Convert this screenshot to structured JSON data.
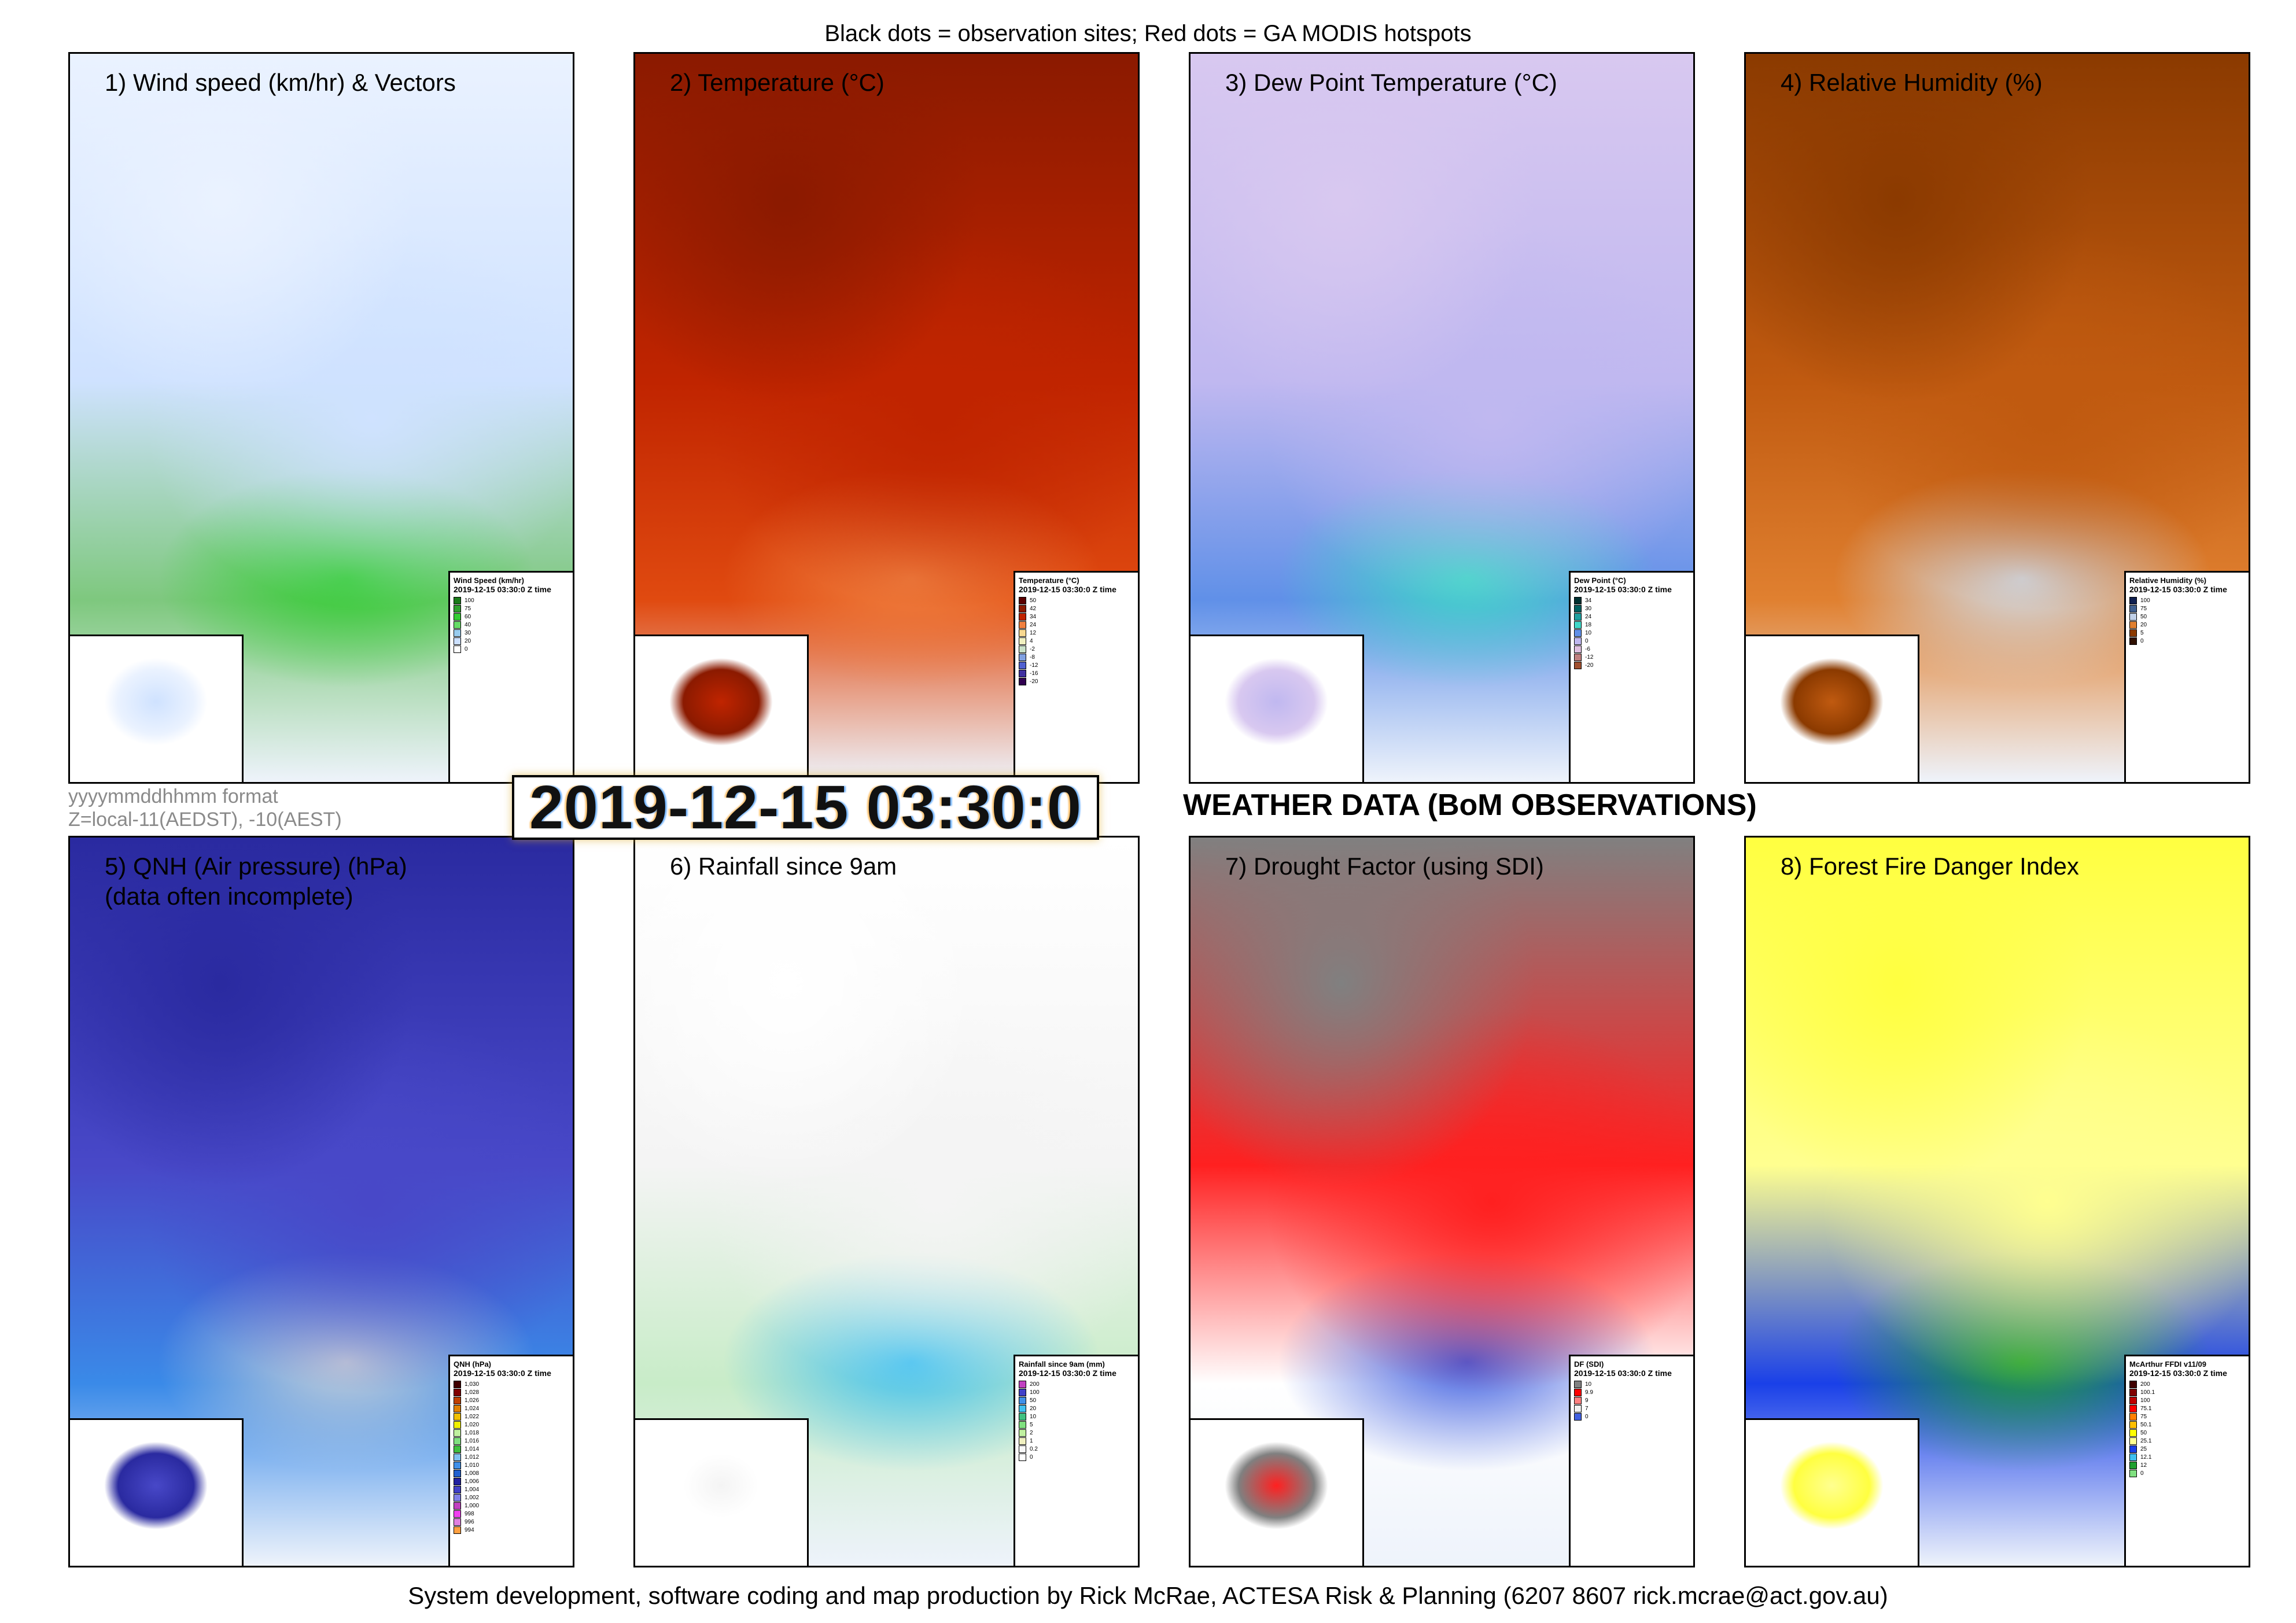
{
  "header": {
    "text": "Black dots = observation sites; Red dots = GA MODIS hotspots"
  },
  "footer": {
    "text": "System development, software coding and map production by Rick McRae, ACTESA Risk & Planning (6207 8607 rick.mcrae@act.gov.au)"
  },
  "date_stamp": "2019-12-15 03:30:0",
  "format_note": {
    "line1": "yyyymmddhhmm format",
    "line2": "Z=local-11(AEDST), -10(AEST)"
  },
  "section_title": "WEATHER DATA (BoM OBSERVATIONS)",
  "time_label": "2019-12-15 03:30:0 Z time",
  "panels": [
    {
      "title": "1) Wind speed (km/hr) & Vectors",
      "subtitle": "",
      "colors": [
        "#eaf2ff",
        "#cfe2ff",
        "#7ec87e",
        "#33cc33"
      ],
      "legend": {
        "title": "Wind Speed (km/hr)",
        "labels": [
          "100",
          "75",
          "60",
          "40",
          "30",
          "20",
          "0"
        ],
        "colors": [
          "#1a7a1a",
          "#2fa02f",
          "#33cc33",
          "#66dd66",
          "#99ccee",
          "#cce0ff",
          "#ffffff"
        ]
      }
    },
    {
      "title": "2) Temperature (°C)",
      "subtitle": "",
      "colors": [
        "#8b1a00",
        "#c02400",
        "#e04a10",
        "#f08040"
      ],
      "legend": {
        "title": "Temperature (°C)",
        "labels": [
          "50",
          "42",
          "34",
          "24",
          "12",
          "4",
          "-2",
          "-8",
          "-12",
          "-16",
          "-20"
        ],
        "colors": [
          "#5a0000",
          "#8b1a00",
          "#c02400",
          "#f08040",
          "#f8d890",
          "#f0f0c0",
          "#c8e0c8",
          "#80a0e0",
          "#5060d0",
          "#4030a0",
          "#300050"
        ]
      }
    },
    {
      "title": "3) Dew Point Temperature (°C)",
      "subtitle": "",
      "colors": [
        "#d8c8f0",
        "#c0b8f0",
        "#6090e8",
        "#40d8c8"
      ],
      "legend": {
        "title": "Dew Point (°C)",
        "labels": [
          "34",
          "30",
          "24",
          "18",
          "10",
          "0",
          "-6",
          "-12",
          "-20"
        ],
        "colors": [
          "#003030",
          "#006060",
          "#20a0a0",
          "#40d8c8",
          "#6090e8",
          "#c0b8f0",
          "#e0c0e0",
          "#c08080",
          "#a05030"
        ]
      }
    },
    {
      "title": "4) Relative Humidity (%)",
      "subtitle": "",
      "colors": [
        "#8b3a00",
        "#c05a10",
        "#e08030",
        "#d0e0f0"
      ],
      "legend": {
        "title": "Relative Humidity (%)",
        "labels": [
          "100",
          "75",
          "50",
          "20",
          "5",
          "0"
        ],
        "colors": [
          "#102050",
          "#406090",
          "#c0d0e8",
          "#e08030",
          "#8b3a00",
          "#301000"
        ]
      }
    },
    {
      "title": "5) QNH (Air pressure) (hPa)",
      "subtitle": "(data often incomplete)",
      "colors": [
        "#2a2aa0",
        "#4848c8",
        "#3a8ae8",
        "#c8d0d8"
      ],
      "legend": {
        "title": "QNH (hPa)",
        "labels": [
          "1,030",
          "1,028",
          "1,026",
          "1,024",
          "1,022",
          "1,020",
          "1,018",
          "1,016",
          "1,014",
          "1,012",
          "1,010",
          "1,008",
          "1,006",
          "1,004",
          "1,002",
          "1,000",
          "998",
          "996",
          "994"
        ],
        "colors": [
          "#400000",
          "#800000",
          "#c04000",
          "#e08000",
          "#f0c000",
          "#f0f000",
          "#c0f0a0",
          "#80e080",
          "#40c040",
          "#80c0f0",
          "#4090e8",
          "#2060d0",
          "#2020a0",
          "#4040c8",
          "#8080e8",
          "#c040c0",
          "#f040f0",
          "#e080e0",
          "#ffa040"
        ]
      }
    },
    {
      "title": "6) Rainfall since 9am",
      "subtitle": "",
      "colors": [
        "#ffffff",
        "#f4f4f4",
        "#c8ecc8",
        "#40c0f0"
      ],
      "legend": {
        "title": "Rainfall since 9am (mm)",
        "labels": [
          "200",
          "100",
          "50",
          "20",
          "10",
          "5",
          "2",
          "1",
          "0.2",
          "0"
        ],
        "colors": [
          "#c040c0",
          "#4040c8",
          "#4090e8",
          "#40c0f0",
          "#40c080",
          "#80e080",
          "#c0f0a0",
          "#f0f0c0",
          "#f8f8f8",
          "#ffffff"
        ]
      }
    },
    {
      "title": "7) Drought Factor (using SDI)",
      "subtitle": "",
      "colors": [
        "#808080",
        "#ff2020",
        "#ffffff",
        "#4060e0"
      ],
      "legend": {
        "title": "DF (SDI)",
        "labels": [
          "10",
          "9.9",
          "9",
          "7",
          "0"
        ],
        "colors": [
          "#808080",
          "#ff0000",
          "#ff8080",
          "#f0f0f0",
          "#4060e0"
        ]
      }
    },
    {
      "title": "8) Forest Fire Danger Index",
      "subtitle": "",
      "colors": [
        "#ffff40",
        "#ffff90",
        "#1a40e8",
        "#20a030"
      ],
      "legend": {
        "title": "McArthur FFDI v11/09",
        "labels": [
          "200",
          "100.1",
          "100",
          "75.1",
          "75",
          "50.1",
          "50",
          "25.1",
          "25",
          "12.1",
          "12",
          "0"
        ],
        "colors": [
          "#400000",
          "#800000",
          "#c00000",
          "#ff0000",
          "#ff8000",
          "#ffc000",
          "#ffff00",
          "#ffff90",
          "#1a40e8",
          "#40c0f0",
          "#20a030",
          "#80e080"
        ]
      }
    }
  ]
}
